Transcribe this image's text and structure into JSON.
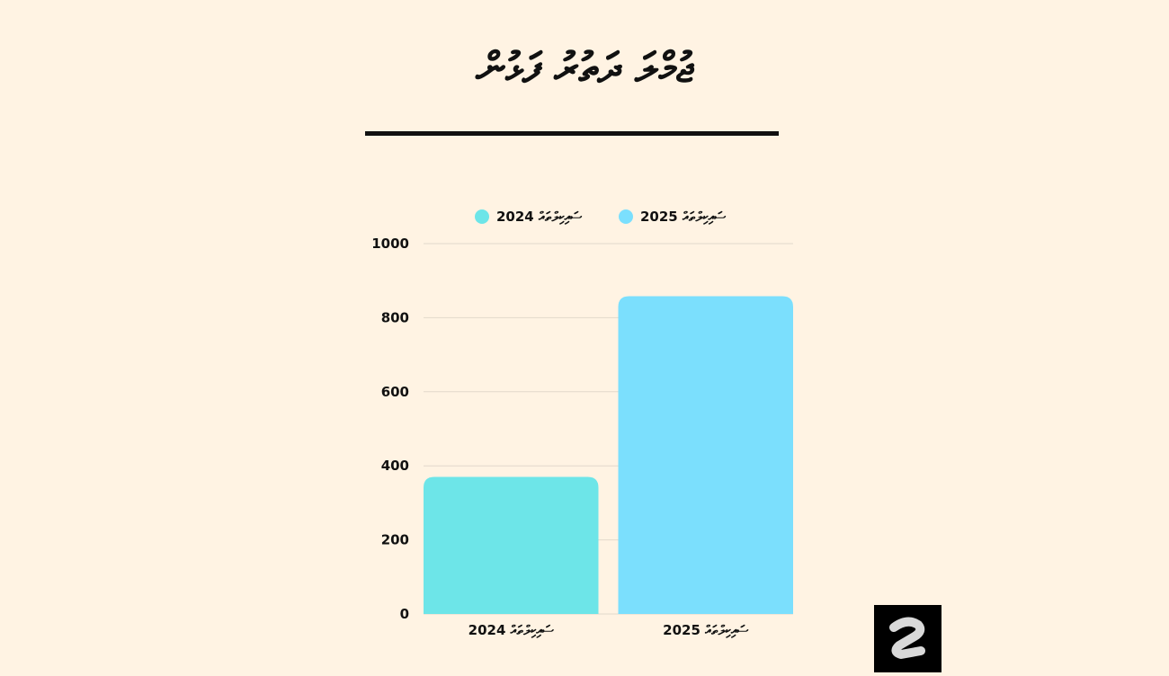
{
  "title": "ޖުމްލަ ދަތުރު ފަޅުން",
  "chart_data": {
    "type": "bar",
    "categories": [
      "2024 ސައިކިލްތައް",
      "2025 ސައިކިލްތައް"
    ],
    "values": [
      370,
      858
    ],
    "ylim": [
      0,
      1000
    ],
    "yticks": [
      0,
      200,
      400,
      600,
      800,
      1000
    ],
    "grid": true,
    "legend_position": "top",
    "colors": [
      "#6de5e8",
      "#7bdffd"
    ],
    "legend": [
      "2024 ސައިކިލްތައް",
      "2025 ސައިކިލްތައް"
    ]
  },
  "colors": {
    "background": "#fff3e3",
    "rule": "#111111",
    "grid": "#e2d8cb"
  }
}
